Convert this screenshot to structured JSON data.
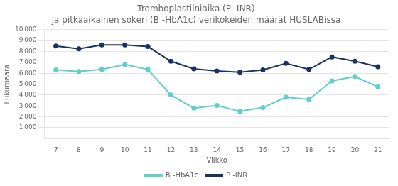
{
  "chart_data": {
    "type": "line",
    "title": "Tromboplastiiniaika (P -INR)",
    "subtitle": "ja pitkäaikainen sokeri (B -HbA1c) verikokeiden määrät HUSLABissa",
    "x_label": "Viikko",
    "y_label": "Lukumäärä",
    "x": [
      7,
      8,
      9,
      10,
      11,
      12,
      13,
      14,
      15,
      16,
      17,
      18,
      19,
      20,
      21
    ],
    "series": [
      {
        "name": "B -HbA1c",
        "color": "#5ecfc9",
        "marker": "circle",
        "line_style": "solid",
        "values": [
          6300,
          6150,
          6350,
          6800,
          6350,
          4000,
          2800,
          3050,
          2500,
          2850,
          3800,
          3600,
          5300,
          5700,
          4750
        ]
      },
      {
        "name": "P -INR",
        "color": "#1a3263",
        "marker": "circle",
        "line_style": "solid",
        "values": [
          8500,
          8250,
          8600,
          8600,
          8450,
          7100,
          6400,
          6200,
          6100,
          6300,
          6900,
          6350,
          7500,
          7100,
          6600
        ]
      }
    ],
    "xlim": [
      6.5,
      21.5
    ],
    "xticks": [
      7,
      8,
      9,
      10,
      11,
      12,
      13,
      14,
      15,
      16,
      17,
      18,
      19,
      20,
      21
    ],
    "ylim": [
      0,
      10000
    ],
    "yticks": [
      {
        "value": 1000,
        "label": "1 000"
      },
      {
        "value": 2000,
        "label": "2 000"
      },
      {
        "value": 3000,
        "label": "3 000"
      },
      {
        "value": 4000,
        "label": "4 000"
      },
      {
        "value": 5000,
        "label": "5 000"
      },
      {
        "value": 6000,
        "label": "6 000"
      },
      {
        "value": 7000,
        "label": "7 000"
      },
      {
        "value": 8000,
        "label": "8 000"
      },
      {
        "value": 9000,
        "label": "9 000"
      },
      {
        "value": 10000,
        "label": "10 000"
      }
    ],
    "grid": "y",
    "legend": "bottom"
  }
}
